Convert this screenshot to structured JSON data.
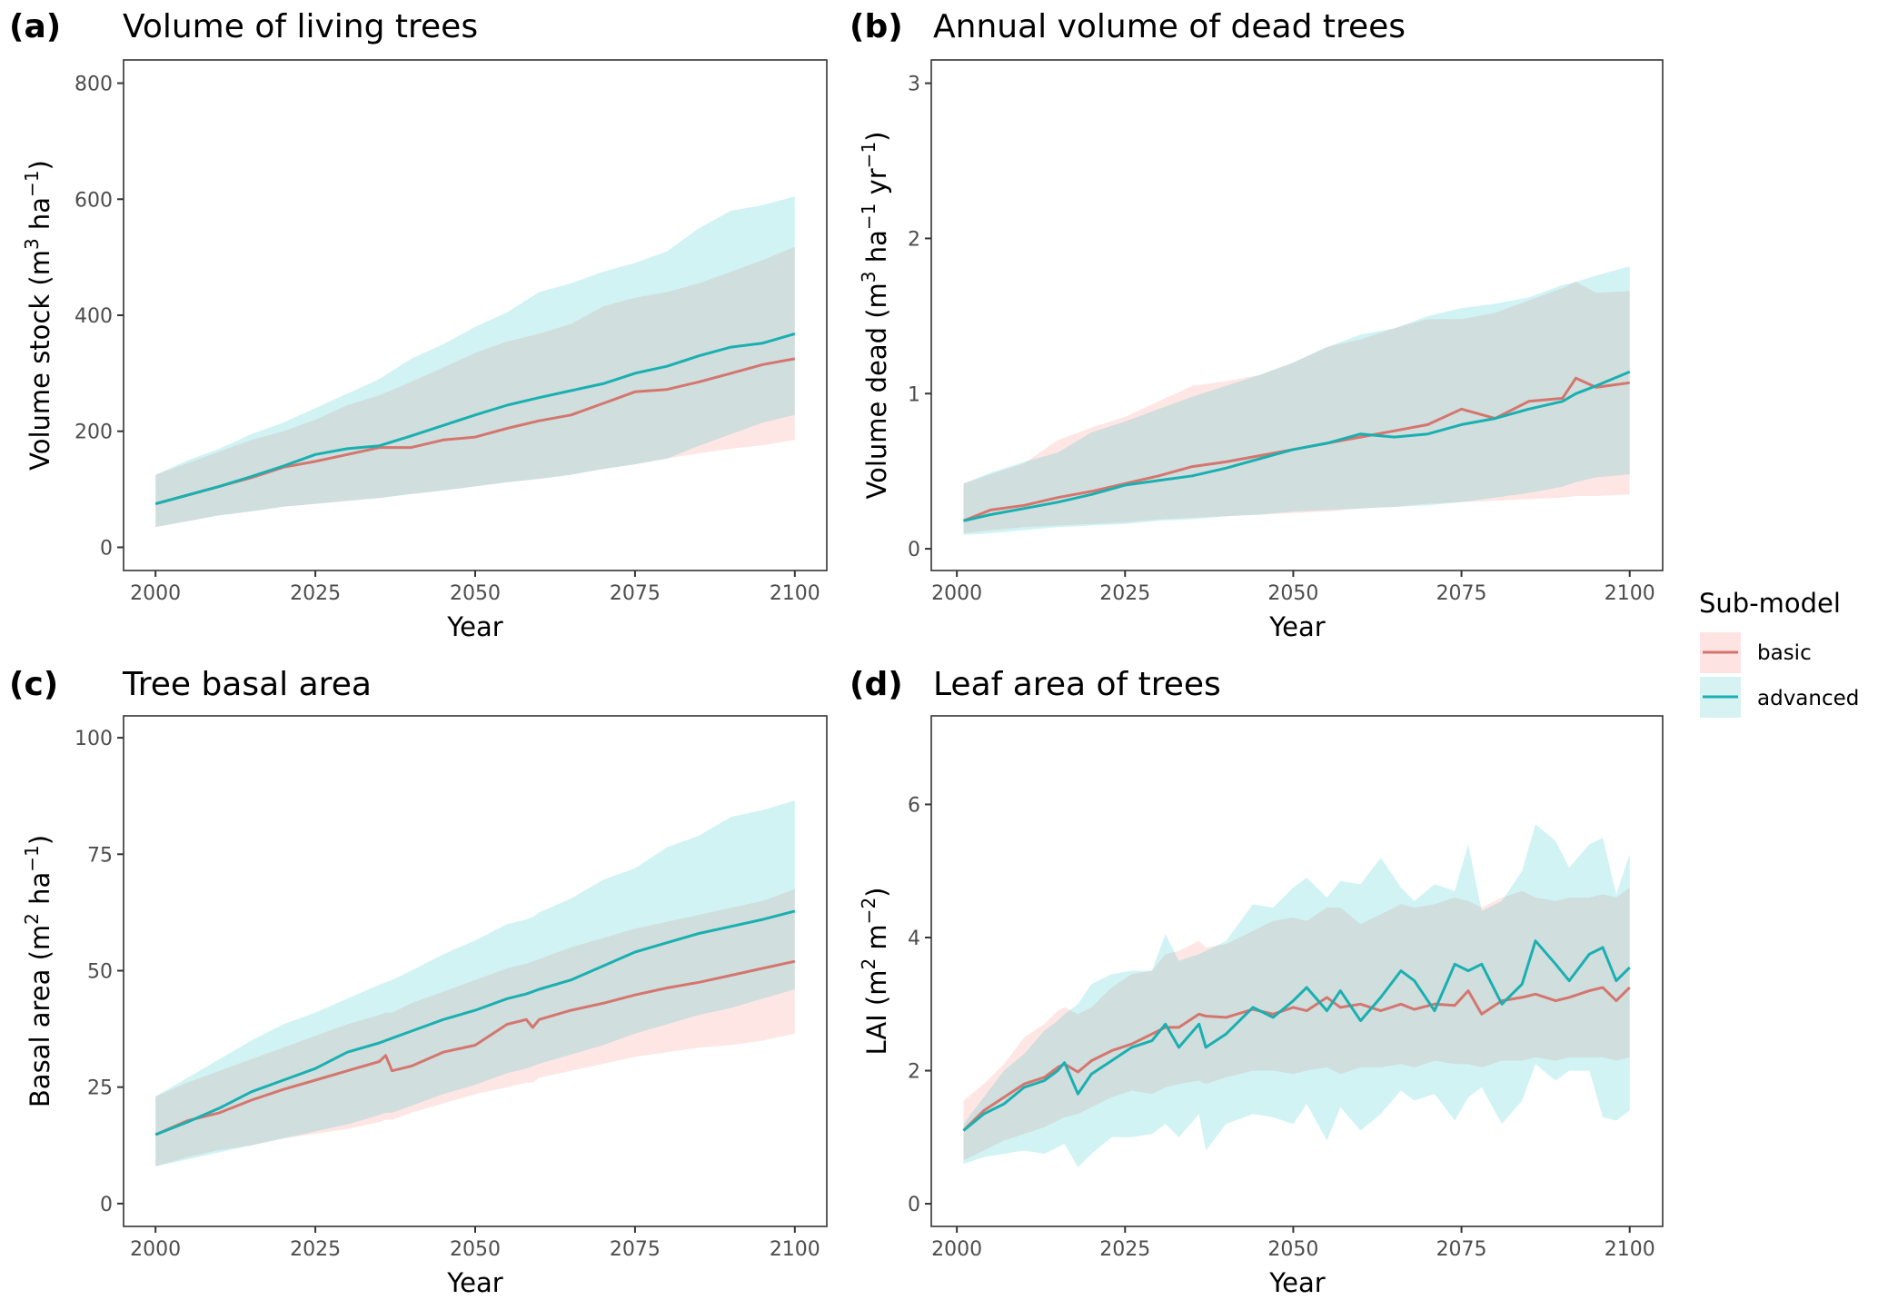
{
  "legend": {
    "title": "Sub-model",
    "items": [
      {
        "name": "basic",
        "line_color": "#D4766E",
        "band_color": "#FDE3E2"
      },
      {
        "name": "advanced",
        "line_color": "#1AAFB0",
        "band_color": "#D6F2F3"
      }
    ],
    "overlap_color": "#D6E1E0"
  },
  "chart_data": [
    {
      "type": "line",
      "tag": "(a)",
      "title": "Volume of living trees",
      "xlabel": "Year",
      "ylabel": "Volume stock (m³ ha⁻¹)",
      "ylabel_parts": {
        "base": "Volume stock (m",
        "sup1": "3",
        "mid": " ha",
        "sup2": "−1",
        "end": ")"
      },
      "xlim": [
        1995,
        2105
      ],
      "ylim": [
        -40,
        840
      ],
      "xticks": [
        2000,
        2025,
        2050,
        2075,
        2100
      ],
      "yticks": [
        0,
        200,
        400,
        600,
        800
      ],
      "x": [
        2000,
        2005,
        2010,
        2015,
        2020,
        2025,
        2030,
        2035,
        2040,
        2045,
        2050,
        2055,
        2060,
        2065,
        2070,
        2075,
        2080,
        2085,
        2090,
        2095,
        2100
      ],
      "series": [
        {
          "name": "basic",
          "values": [
            75,
            90,
            105,
            120,
            138,
            148,
            160,
            172,
            172,
            185,
            190,
            205,
            218,
            228,
            248,
            268,
            272,
            285,
            300,
            315,
            325
          ],
          "lower": [
            35,
            45,
            55,
            62,
            70,
            75,
            80,
            85,
            92,
            98,
            105,
            112,
            118,
            125,
            135,
            143,
            153,
            162,
            170,
            176,
            185
          ],
          "upper": [
            125,
            145,
            165,
            185,
            200,
            220,
            245,
            262,
            285,
            310,
            335,
            355,
            368,
            385,
            415,
            430,
            440,
            455,
            475,
            495,
            518
          ]
        },
        {
          "name": "advanced",
          "values": [
            75,
            90,
            105,
            122,
            140,
            160,
            170,
            175,
            192,
            210,
            228,
            245,
            258,
            270,
            282,
            300,
            312,
            330,
            345,
            352,
            368
          ],
          "lower": [
            35,
            45,
            55,
            62,
            70,
            75,
            80,
            85,
            92,
            98,
            105,
            112,
            118,
            125,
            135,
            143,
            153,
            175,
            195,
            215,
            228
          ],
          "upper": [
            125,
            150,
            170,
            195,
            215,
            240,
            265,
            290,
            325,
            350,
            380,
            405,
            440,
            455,
            475,
            490,
            510,
            550,
            580,
            590,
            605
          ]
        }
      ]
    },
    {
      "type": "line",
      "tag": "(b)",
      "title": "Annual volume of dead trees",
      "xlabel": "Year",
      "ylabel": "Volume dead (m³ ha⁻¹ yr⁻¹)",
      "ylabel_parts": {
        "base": "Volume dead (m",
        "sup1": "3",
        "mid": " ha",
        "sup2": "−1",
        "mid2": " yr",
        "sup3": "−1",
        "end": ")"
      },
      "xlim": [
        1996.2,
        2104.9
      ],
      "ylim": [
        -0.14,
        3.15
      ],
      "xticks": [
        2000,
        2025,
        2050,
        2075,
        2100
      ],
      "yticks": [
        0,
        1,
        2,
        3
      ],
      "x": [
        2001,
        2005,
        2010,
        2015,
        2020,
        2025,
        2030,
        2035,
        2040,
        2045,
        2050,
        2055,
        2060,
        2065,
        2070,
        2075,
        2080,
        2085,
        2090,
        2092,
        2095,
        2100
      ],
      "series": [
        {
          "name": "basic",
          "values": [
            0.18,
            0.25,
            0.28,
            0.33,
            0.37,
            0.42,
            0.47,
            0.53,
            0.56,
            0.6,
            0.64,
            0.68,
            0.72,
            0.76,
            0.8,
            0.9,
            0.84,
            0.95,
            0.97,
            1.1,
            1.04,
            1.07
          ],
          "lower": [
            0.1,
            0.12,
            0.14,
            0.15,
            0.16,
            0.17,
            0.19,
            0.2,
            0.21,
            0.22,
            0.23,
            0.24,
            0.26,
            0.27,
            0.29,
            0.3,
            0.31,
            0.32,
            0.33,
            0.34,
            0.34,
            0.35
          ],
          "upper": [
            0.42,
            0.48,
            0.55,
            0.7,
            0.78,
            0.85,
            0.95,
            1.05,
            1.08,
            1.12,
            1.2,
            1.3,
            1.35,
            1.42,
            1.48,
            1.48,
            1.52,
            1.6,
            1.68,
            1.72,
            1.65,
            1.66
          ]
        },
        {
          "name": "advanced",
          "values": [
            0.18,
            0.22,
            0.26,
            0.3,
            0.35,
            0.41,
            0.44,
            0.47,
            0.52,
            0.58,
            0.64,
            0.68,
            0.74,
            0.72,
            0.74,
            0.8,
            0.84,
            0.9,
            0.95,
            1.0,
            1.05,
            1.14
          ],
          "lower": [
            0.09,
            0.1,
            0.12,
            0.14,
            0.15,
            0.16,
            0.18,
            0.19,
            0.21,
            0.22,
            0.24,
            0.25,
            0.26,
            0.27,
            0.28,
            0.3,
            0.33,
            0.36,
            0.4,
            0.43,
            0.46,
            0.48
          ],
          "upper": [
            0.42,
            0.49,
            0.56,
            0.62,
            0.75,
            0.82,
            0.9,
            0.98,
            1.05,
            1.12,
            1.2,
            1.3,
            1.38,
            1.42,
            1.5,
            1.55,
            1.58,
            1.62,
            1.7,
            1.72,
            1.76,
            1.82
          ]
        }
      ]
    },
    {
      "type": "line",
      "tag": "(c)",
      "title": "Tree basal area",
      "xlabel": "Year",
      "ylabel": "Basal area (m² ha⁻¹)",
      "ylabel_parts": {
        "base": "Basal area (m",
        "sup1": "2",
        "mid": " ha",
        "sup2": "−1",
        "end": ")"
      },
      "xlim": [
        1995,
        2105
      ],
      "ylim": [
        -4.9,
        104.7
      ],
      "xticks": [
        2000,
        2025,
        2050,
        2075,
        2100
      ],
      "yticks": [
        0,
        25,
        50,
        75,
        100
      ],
      "x": [
        2000,
        2005,
        2010,
        2015,
        2020,
        2025,
        2030,
        2035,
        2036,
        2037,
        2040,
        2045,
        2050,
        2055,
        2058,
        2059,
        2060,
        2065,
        2070,
        2075,
        2080,
        2085,
        2090,
        2095,
        2100
      ],
      "series": [
        {
          "name": "basic",
          "values": [
            14.8,
            17.8,
            19.5,
            22.2,
            24.5,
            26.5,
            28.5,
            30.5,
            31.8,
            28.5,
            29.5,
            32.5,
            34,
            38.5,
            39.5,
            37.8,
            39.5,
            41.5,
            43,
            44.8,
            46.3,
            47.5,
            49,
            50.5,
            52
          ],
          "lower": [
            8,
            10,
            11.5,
            12.5,
            14,
            15,
            16,
            17.5,
            18,
            18,
            19.5,
            21.5,
            23.5,
            25,
            26,
            26,
            27,
            28.5,
            30,
            31.5,
            32.5,
            33.5,
            34,
            35,
            36.5
          ],
          "upper": [
            23,
            26,
            28.5,
            31,
            33.5,
            36,
            38.5,
            40.5,
            41,
            41,
            43,
            45.5,
            48,
            50.5,
            51.5,
            52,
            52.5,
            55,
            57,
            59,
            60.5,
            62,
            63.5,
            65,
            67.5
          ]
        },
        {
          "name": "advanced",
          "values": [
            14.8,
            17.5,
            20.5,
            24,
            26.5,
            29,
            32.5,
            34.5,
            35,
            35.5,
            37,
            39.5,
            41.5,
            44,
            45,
            45.5,
            46,
            48,
            51,
            54,
            56,
            58,
            59.5,
            61,
            62.8
          ],
          "lower": [
            8,
            9.5,
            11,
            12.5,
            14,
            15.5,
            17,
            19,
            19.5,
            19.5,
            21,
            23.5,
            25.5,
            28,
            29,
            29.5,
            30,
            32,
            34,
            36.5,
            38.5,
            40.5,
            42,
            44,
            46
          ],
          "upper": [
            23,
            27,
            31,
            35,
            38.5,
            41,
            44,
            47,
            47.5,
            48,
            50,
            53.5,
            56.5,
            60,
            61,
            61.5,
            62.5,
            65.5,
            69.5,
            72,
            76.5,
            79,
            83,
            84.5,
            86.5
          ]
        }
      ]
    },
    {
      "type": "line",
      "tag": "(d)",
      "title": "Leaf area of trees",
      "xlabel": "Year",
      "ylabel": "LAI (m² m⁻²)",
      "ylabel_parts": {
        "base": "LAI (m",
        "sup1": "2",
        "mid": " m",
        "sup2": "−2",
        "end": ")"
      },
      "xlim": [
        1996.2,
        2104.9
      ],
      "ylim": [
        -0.34,
        7.33
      ],
      "xticks": [
        2000,
        2025,
        2050,
        2075,
        2100
      ],
      "yticks": [
        0,
        2,
        4,
        6
      ],
      "x": [
        2001,
        2004,
        2007,
        2010,
        2013,
        2015,
        2016,
        2018,
        2020,
        2023,
        2026,
        2029,
        2031,
        2033,
        2036,
        2037,
        2040,
        2044,
        2047,
        2050,
        2052,
        2055,
        2057,
        2060,
        2063,
        2066,
        2068,
        2071,
        2074,
        2076,
        2078,
        2081,
        2084,
        2086,
        2089,
        2091,
        2094,
        2096,
        2098,
        2100
      ],
      "series": [
        {
          "name": "basic",
          "values": [
            1.1,
            1.4,
            1.6,
            1.8,
            1.9,
            2.05,
            2.1,
            1.98,
            2.15,
            2.3,
            2.4,
            2.55,
            2.65,
            2.65,
            2.85,
            2.82,
            2.8,
            2.92,
            2.85,
            2.95,
            2.9,
            3.1,
            2.95,
            3.0,
            2.9,
            3.0,
            2.92,
            3.0,
            2.98,
            3.2,
            2.85,
            3.05,
            3.1,
            3.15,
            3.05,
            3.1,
            3.2,
            3.25,
            3.05,
            3.25
          ],
          "lower": [
            0.65,
            0.8,
            0.95,
            1.05,
            1.15,
            1.25,
            1.3,
            1.35,
            1.45,
            1.6,
            1.7,
            1.65,
            1.75,
            1.8,
            1.85,
            1.8,
            1.9,
            2.0,
            2.0,
            1.95,
            2.0,
            2.05,
            1.95,
            2.05,
            2.05,
            2.1,
            2.05,
            2.15,
            2.1,
            2.1,
            2.05,
            2.15,
            2.15,
            2.2,
            2.15,
            2.2,
            2.2,
            2.2,
            2.15,
            2.2
          ],
          "upper": [
            1.55,
            1.8,
            2.1,
            2.5,
            2.7,
            2.9,
            2.95,
            2.85,
            2.95,
            3.25,
            3.45,
            3.5,
            3.75,
            3.8,
            3.95,
            3.85,
            3.9,
            4.1,
            4.25,
            4.3,
            4.25,
            4.45,
            4.45,
            4.2,
            4.35,
            4.5,
            4.45,
            4.5,
            4.6,
            4.55,
            4.45,
            4.6,
            4.7,
            4.6,
            4.55,
            4.6,
            4.6,
            4.65,
            4.6,
            4.75
          ]
        },
        {
          "name": "advanced",
          "values": [
            1.1,
            1.35,
            1.5,
            1.75,
            1.85,
            2.0,
            2.12,
            1.65,
            1.95,
            2.15,
            2.35,
            2.45,
            2.7,
            2.35,
            2.7,
            2.35,
            2.55,
            2.95,
            2.8,
            3.05,
            3.25,
            2.9,
            3.2,
            2.75,
            3.1,
            3.5,
            3.35,
            2.9,
            3.6,
            3.5,
            3.6,
            3.0,
            3.3,
            3.95,
            3.6,
            3.35,
            3.75,
            3.85,
            3.35,
            3.55
          ],
          "lower": [
            0.6,
            0.7,
            0.75,
            0.8,
            0.75,
            0.85,
            0.9,
            0.55,
            0.75,
            1.0,
            1.0,
            1.05,
            1.2,
            1.0,
            1.35,
            0.8,
            1.2,
            1.35,
            1.3,
            1.2,
            1.5,
            0.95,
            1.45,
            1.1,
            1.35,
            1.7,
            1.55,
            1.65,
            1.25,
            1.6,
            1.75,
            1.2,
            1.55,
            2.1,
            1.85,
            2.0,
            2.0,
            1.3,
            1.25,
            1.4
          ],
          "upper": [
            1.2,
            1.6,
            2.0,
            2.25,
            2.6,
            2.75,
            2.85,
            3.0,
            3.3,
            3.45,
            3.5,
            3.5,
            4.05,
            3.65,
            3.75,
            3.8,
            3.95,
            4.5,
            4.45,
            4.75,
            4.9,
            4.6,
            4.85,
            4.8,
            5.2,
            4.75,
            4.55,
            4.8,
            4.7,
            5.4,
            4.4,
            4.55,
            5.0,
            5.7,
            5.45,
            5.05,
            5.4,
            5.5,
            4.65,
            5.25
          ]
        }
      ]
    }
  ]
}
